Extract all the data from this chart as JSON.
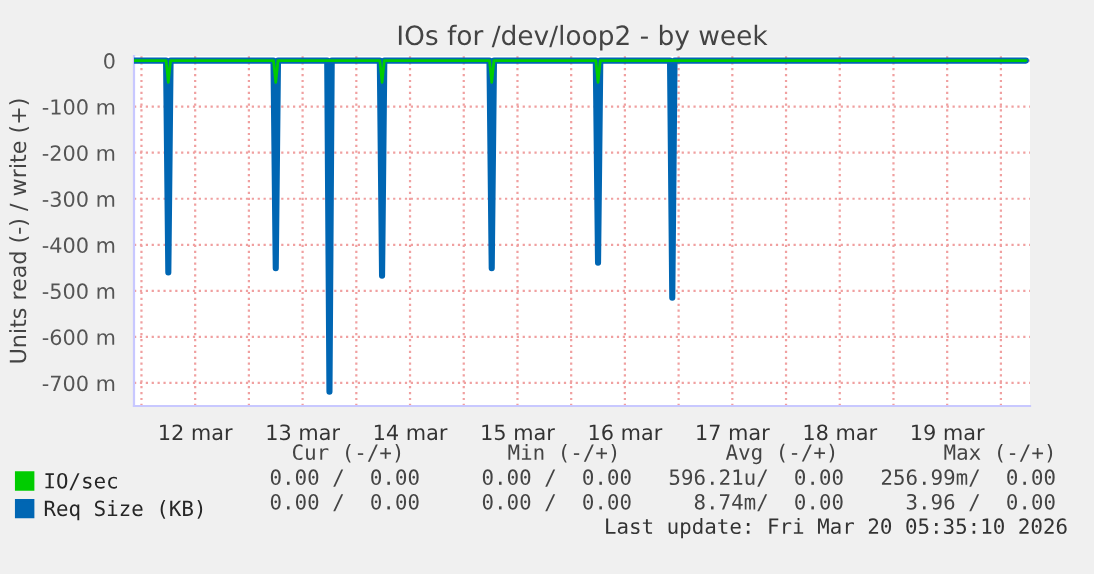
{
  "chart_data": {
    "type": "line",
    "title": "IOs for /dev/loop2 - by week",
    "ylabel": "Units read (-) / write (+)",
    "series": [
      {
        "name": "IO/sec",
        "color": "#00cc00",
        "x": [
          "2026-03-11T22:20",
          "2026-03-12T05:30",
          "2026-03-12T06:00",
          "2026-03-12T06:30",
          "2026-03-13T05:30",
          "2026-03-13T06:00",
          "2026-03-13T06:30",
          "2026-03-14T05:15",
          "2026-03-14T05:45",
          "2026-03-14T06:15",
          "2026-03-15T05:45",
          "2026-03-15T06:15",
          "2026-03-15T06:45",
          "2026-03-16T05:30",
          "2026-03-16T06:00",
          "2026-03-16T06:30",
          "2026-03-20T05:35"
        ],
        "values": [
          0,
          0,
          -47,
          0,
          0,
          -47,
          0,
          0,
          -47,
          0,
          0,
          -47,
          0,
          0,
          -47,
          0,
          0
        ]
      },
      {
        "name": "Req Size (KB)",
        "color": "#0066b3",
        "x": [
          "2026-03-11T22:20",
          "2026-03-12T05:30",
          "2026-03-12T06:00",
          "2026-03-12T06:30",
          "2026-03-13T05:30",
          "2026-03-13T06:00",
          "2026-03-13T06:30",
          "2026-03-13T17:30",
          "2026-03-13T18:00",
          "2026-03-13T18:30",
          "2026-03-14T05:15",
          "2026-03-14T05:45",
          "2026-03-14T06:15",
          "2026-03-15T05:45",
          "2026-03-15T06:15",
          "2026-03-15T06:45",
          "2026-03-16T05:30",
          "2026-03-16T06:00",
          "2026-03-16T06:30",
          "2026-03-16T22:05",
          "2026-03-16T22:35",
          "2026-03-16T23:05",
          "2026-03-20T05:35"
        ],
        "values": [
          0,
          0,
          -460,
          0,
          0,
          -451,
          0,
          0,
          -719,
          0,
          0,
          -467,
          0,
          0,
          -451,
          0,
          0,
          -439,
          0,
          0,
          -515,
          0,
          0
        ]
      }
    ],
    "xlim": [
      "2026-03-11T22:20",
      "2026-03-20T06:30"
    ],
    "xticks": [
      {
        "value": "2026-03-12",
        "label": null
      },
      {
        "value": "2026-03-12T12:00",
        "label": "12 mar"
      },
      {
        "value": "2026-03-13",
        "label": null
      },
      {
        "value": "2026-03-13T12:00",
        "label": "13 mar"
      },
      {
        "value": "2026-03-14",
        "label": null
      },
      {
        "value": "2026-03-14T12:00",
        "label": "14 mar"
      },
      {
        "value": "2026-03-15",
        "label": null
      },
      {
        "value": "2026-03-15T12:00",
        "label": "15 mar"
      },
      {
        "value": "2026-03-16",
        "label": null
      },
      {
        "value": "2026-03-16T12:00",
        "label": "16 mar"
      },
      {
        "value": "2026-03-17",
        "label": null
      },
      {
        "value": "2026-03-17T12:00",
        "label": "17 mar"
      },
      {
        "value": "2026-03-18",
        "label": null
      },
      {
        "value": "2026-03-18T12:00",
        "label": "18 mar"
      },
      {
        "value": "2026-03-19",
        "label": null
      },
      {
        "value": "2026-03-19T12:00",
        "label": "19 mar"
      },
      {
        "value": "2026-03-20",
        "label": null
      }
    ],
    "ylim": [
      -750,
      10
    ],
    "yticks": [
      0,
      {
        "value": -100,
        "label": "-100 m"
      },
      {
        "value": -200,
        "label": "-200 m"
      },
      {
        "value": -300,
        "label": "-300 m"
      },
      {
        "value": -400,
        "label": "-400 m"
      },
      {
        "value": -500,
        "label": "-500 m"
      },
      {
        "value": -600,
        "label": "-600 m"
      },
      {
        "value": -700,
        "label": "-700 m"
      }
    ],
    "grid": true,
    "legend": "bottom left",
    "annotations": [
      "Cur (-/+)",
      "Min (-/+)",
      "Avg (-/+)",
      "Max (-/+)",
      "0.00 /  0.00",
      "0.00 /  0.00",
      "596.21u/  0.00",
      "256.99m/  0.00",
      "0.00 /  0.00",
      "0.00 /  0.00",
      "8.74m/  0.00",
      "3.96 /  0.00",
      "Last update: Fri Mar 20 05:35:10 2026"
    ]
  }
}
